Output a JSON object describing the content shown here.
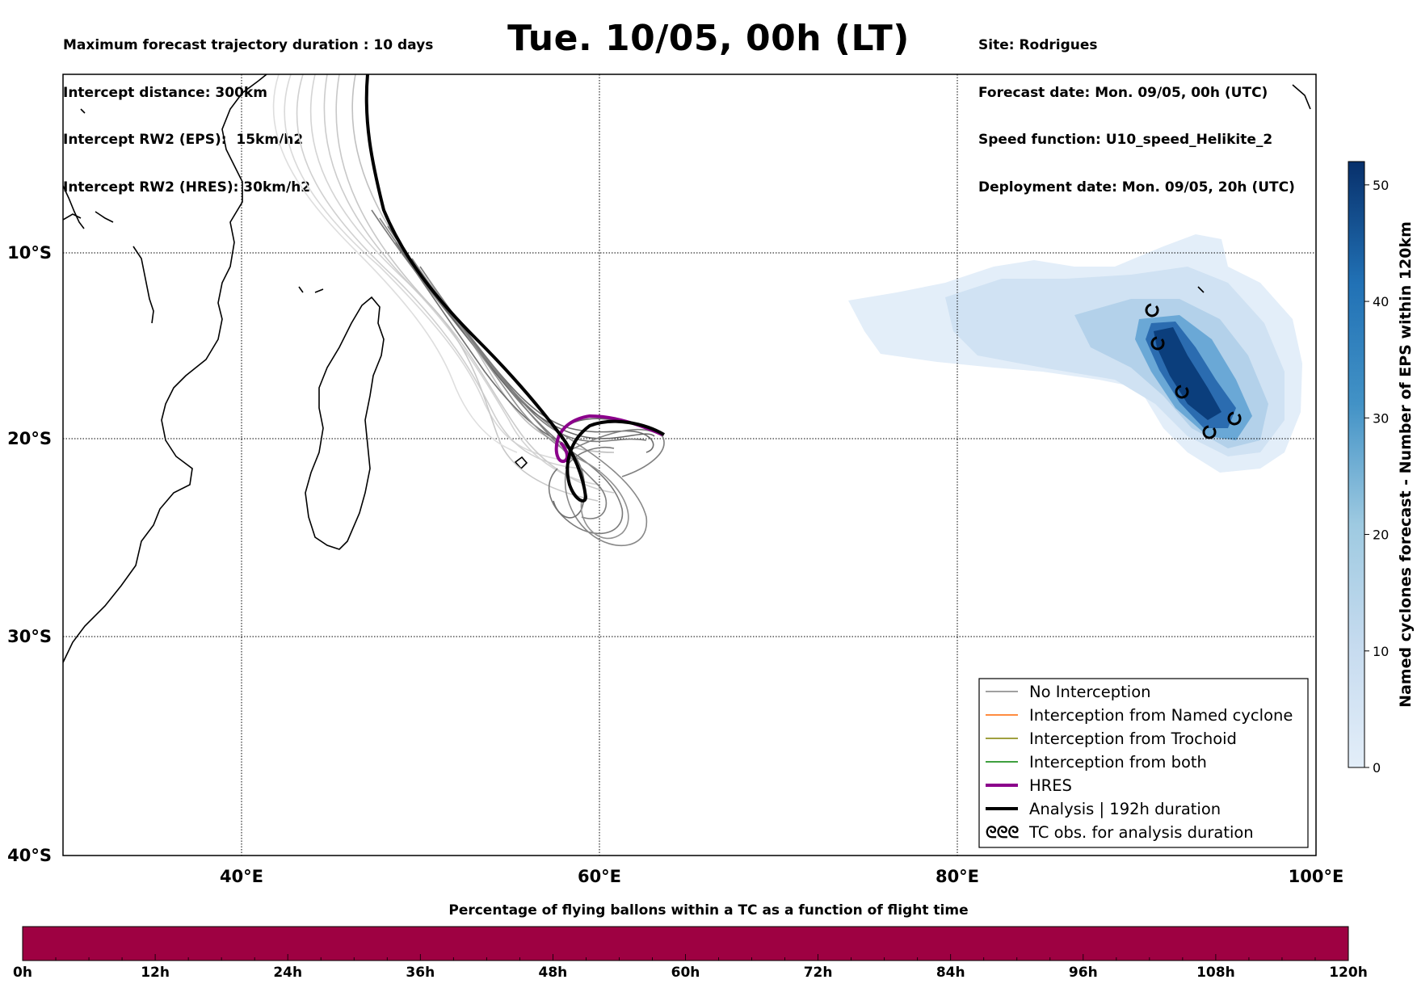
{
  "header": {
    "title": "Tue. 10/05, 00h (LT)",
    "left_lines": [
      "Maximum forecast trajectory duration : 10 days",
      "Intercept distance: 300km",
      "Intercept RW2 (EPS):  15km/h2",
      "Intercept RW2 (HRES): 30km/h2"
    ],
    "right_lines": [
      "Site: Rodrigues",
      "Forecast date: Mon. 09/05, 00h (UTC)",
      "Speed function: U10_speed_Helikite_2",
      "Deployment date: Mon. 09/05, 20h (UTC)"
    ]
  },
  "map": {
    "lon_ticks": [
      "40°E",
      "60°E",
      "80°E",
      "100°E"
    ],
    "lat_ticks": [
      "10°S",
      "20°S",
      "30°S",
      "40°S"
    ],
    "gridline_lons": [
      40,
      60,
      80
    ],
    "gridline_lats": [
      -10,
      -20,
      -30
    ]
  },
  "legend": {
    "items": [
      {
        "label": "No Interception",
        "color": "#808080",
        "style": "thin"
      },
      {
        "label": "Interception from Named cyclone",
        "color": "#ff6600",
        "style": "thin"
      },
      {
        "label": "Interception from Trochoid",
        "color": "#808000",
        "style": "thin"
      },
      {
        "label": "Interception from both",
        "color": "#008000",
        "style": "thin"
      },
      {
        "label": "HRES",
        "color": "#8b008b",
        "style": "thick"
      },
      {
        "label": "Analysis | 192h duration",
        "color": "#000000",
        "style": "thick"
      },
      {
        "label": "TC obs. for analysis duration",
        "color": "#000000",
        "style": "symbol",
        "symbol": "ᘓᘓᘓ"
      }
    ]
  },
  "colorbar": {
    "title": "Named cyclones forecast - Number of EPS within 120km",
    "ticks": [
      "0",
      "10",
      "20",
      "30",
      "40",
      "50"
    ],
    "range": [
      0,
      52
    ],
    "color_low": "#e3eef9",
    "color_high": "#08306b"
  },
  "flight_bar": {
    "title": "Percentage of flying ballons within a TC as a function of flight time",
    "color": "#9e0142",
    "ticks": [
      "0h",
      "12h",
      "24h",
      "36h",
      "48h",
      "60h",
      "72h",
      "84h",
      "96h",
      "108h",
      "120h"
    ]
  }
}
